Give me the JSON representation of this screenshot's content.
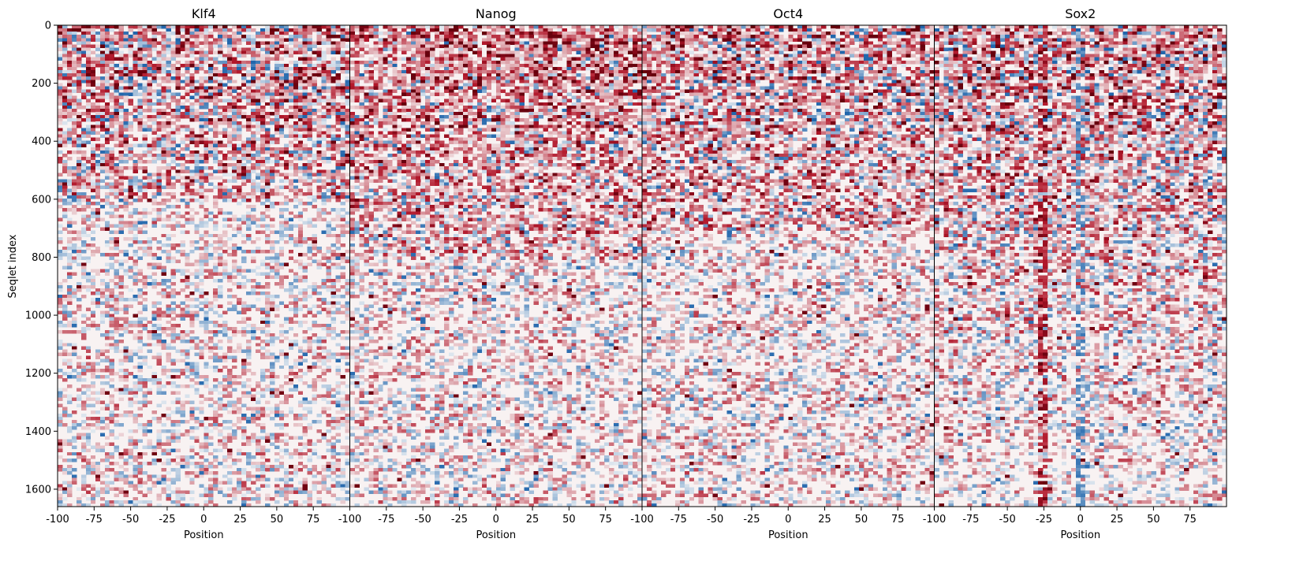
{
  "chart_data": {
    "type": "heatmap",
    "ylabel": "Seqlet index",
    "xlabel": "Position",
    "ylim": [
      1660,
      0
    ],
    "y_ticks": [
      0,
      200,
      400,
      600,
      800,
      1000,
      1200,
      1400,
      1600
    ],
    "x_range": [
      -100,
      100
    ],
    "x_tick_labels_first_panels": [
      "-100",
      "-75",
      "-50",
      "-25",
      "0",
      "25",
      "50",
      "75"
    ],
    "x_tick_labels_last_panel": [
      "-100",
      "-75",
      "-50",
      "-25",
      "0",
      "25",
      "50",
      "75"
    ],
    "x_tick_values": [
      -100,
      -75,
      -50,
      -25,
      0,
      25,
      50,
      75
    ],
    "colormap": "RdBu_r",
    "colors": {
      "positive": "#b2182b",
      "neutral": "#f7f7f7",
      "negative": "#2166ac"
    },
    "panels": [
      {
        "title": "Klf4",
        "positive_bias": 0.35,
        "enrichment_rows": [
          0,
          600
        ]
      },
      {
        "title": "Nanog",
        "positive_bias": 0.6,
        "enrichment_rows": [
          0,
          800
        ]
      },
      {
        "title": "Oct4",
        "positive_bias": 0.45,
        "enrichment_rows": [
          0,
          700
        ]
      },
      {
        "title": "Sox2",
        "positive_bias": 0.4,
        "enrichment_rows": [
          0,
          1600
        ],
        "vertical_bands_at": [
          -25,
          0
        ]
      }
    ]
  }
}
